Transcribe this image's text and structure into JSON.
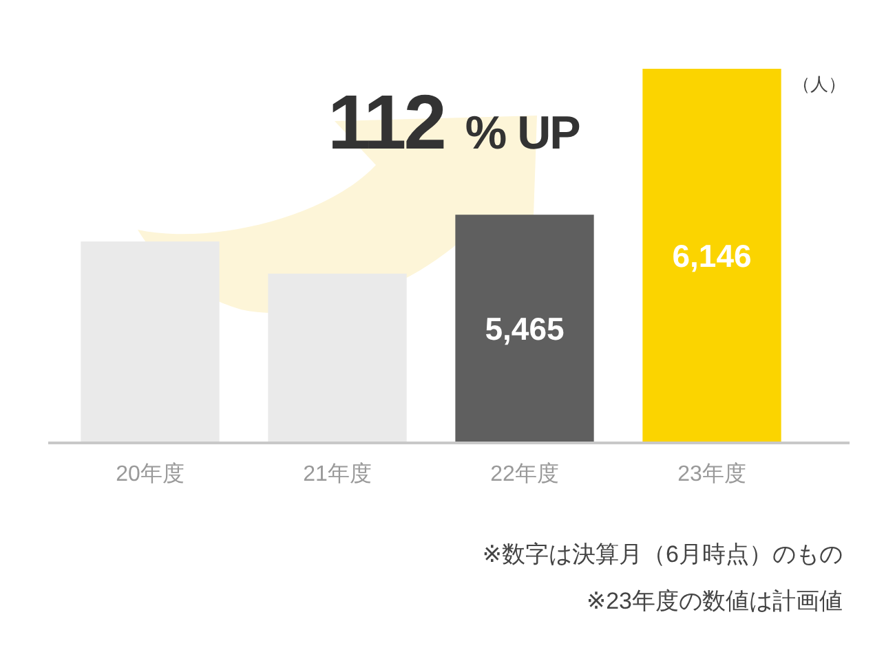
{
  "chart_data": {
    "type": "bar",
    "categories": [
      "20年度",
      "21年度",
      "22年度",
      "23年度"
    ],
    "values": [
      5340,
      5190,
      5465,
      6146
    ],
    "colors": [
      "#eaeaea",
      "#eaeaea",
      "#5f5f5f",
      "#fbd400"
    ],
    "value_labels": [
      null,
      null,
      "5,465",
      "6,146"
    ],
    "ylim": [
      4400,
      6146
    ],
    "ylabel": "（人）",
    "tick_labels": "x",
    "annotations": [
      "112 % UP",
      "※数字は決算月（6月時点）のもの",
      "※23年度の数値は計画値"
    ]
  }
}
